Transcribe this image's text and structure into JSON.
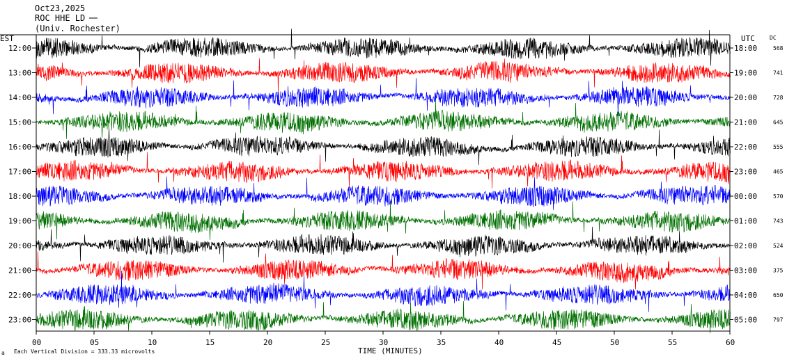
{
  "header": {
    "date": "Oct23,2025",
    "station": "ROC HHE LD",
    "location": "(Univ. Rochester)"
  },
  "left_axis_title": "EST",
  "right_axis_title": "UTC",
  "dc_title": "DC",
  "footer": {
    "scale_text": "Each Vertical Division =  333.33 microvolts"
  },
  "colors": [
    "#000000",
    "#ff0000",
    "#0000ff",
    "#007000"
  ],
  "chart_data": {
    "type": "line",
    "xlabel": "TIME (MINUTES)",
    "xlim": [
      0,
      60
    ],
    "x_ticks": [
      "00",
      "05",
      "10",
      "15",
      "20",
      "25",
      "30",
      "35",
      "40",
      "45",
      "50",
      "55",
      "60"
    ],
    "rows": [
      {
        "est": "12:00",
        "utc": "18:00",
        "dc": "568",
        "color": "#000000"
      },
      {
        "est": "13:00",
        "utc": "19:00",
        "dc": "741",
        "color": "#ff0000"
      },
      {
        "est": "14:00",
        "utc": "20:00",
        "dc": "728",
        "color": "#0000ff"
      },
      {
        "est": "15:00",
        "utc": "21:00",
        "dc": "645",
        "color": "#007000"
      },
      {
        "est": "16:00",
        "utc": "22:00",
        "dc": "555",
        "color": "#000000"
      },
      {
        "est": "17:00",
        "utc": "23:00",
        "dc": "465",
        "color": "#ff0000"
      },
      {
        "est": "18:00",
        "utc": "00:00",
        "dc": "570",
        "color": "#0000ff"
      },
      {
        "est": "19:00",
        "utc": "01:00",
        "dc": "743",
        "color": "#007000"
      },
      {
        "est": "20:00",
        "utc": "02:00",
        "dc": "524",
        "color": "#000000"
      },
      {
        "est": "21:00",
        "utc": "03:00",
        "dc": "375",
        "color": "#ff0000"
      },
      {
        "est": "22:00",
        "utc": "04:00",
        "dc": "650",
        "color": "#0000ff"
      },
      {
        "est": "23:00",
        "utc": "05:00",
        "dc": "797",
        "color": "#007000"
      }
    ]
  }
}
